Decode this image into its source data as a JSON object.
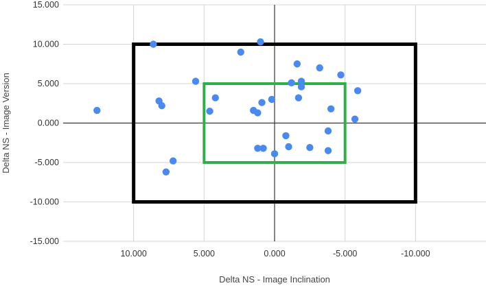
{
  "chart_data": {
    "type": "scatter",
    "title": "",
    "xlabel": "Delta NS - Image Inclination",
    "ylabel": "Delta NS - Image Version",
    "xlim": [
      -15,
      15
    ],
    "ylim": [
      -15,
      15
    ],
    "x_reversed": true,
    "x_ticks": [
      10,
      5,
      0,
      -5,
      -10
    ],
    "x_tick_labels": [
      "10.000",
      "5.000",
      "0.000",
      "-5.000",
      "-10.000"
    ],
    "y_ticks": [
      15,
      10,
      5,
      0,
      -5,
      -10,
      -15
    ],
    "y_tick_labels": [
      "15.000",
      "10.000",
      "5.000",
      "0.000",
      "-5.000",
      "-10.000",
      "-15.000"
    ],
    "grid": true,
    "point_color": "#4a89f0",
    "points": [
      {
        "x": 12.6,
        "y": 1.6
      },
      {
        "x": 8.6,
        "y": 10.0
      },
      {
        "x": 8.2,
        "y": 2.8
      },
      {
        "x": 8.0,
        "y": 2.2
      },
      {
        "x": 7.2,
        "y": -4.8
      },
      {
        "x": 7.7,
        "y": -6.2
      },
      {
        "x": 5.6,
        "y": 5.3
      },
      {
        "x": 4.2,
        "y": 3.2
      },
      {
        "x": 4.6,
        "y": 1.5
      },
      {
        "x": 2.4,
        "y": 9.0
      },
      {
        "x": 1.0,
        "y": 10.3
      },
      {
        "x": 0.9,
        "y": 2.6
      },
      {
        "x": 1.5,
        "y": 1.6
      },
      {
        "x": 1.2,
        "y": 1.3
      },
      {
        "x": 0.2,
        "y": 3.0
      },
      {
        "x": 1.2,
        "y": -3.2
      },
      {
        "x": 0.8,
        "y": -3.2
      },
      {
        "x": 0.0,
        "y": -3.9
      },
      {
        "x": -0.8,
        "y": -1.6
      },
      {
        "x": -1.0,
        "y": -3.0
      },
      {
        "x": -1.6,
        "y": 7.5
      },
      {
        "x": -1.2,
        "y": 5.1
      },
      {
        "x": -1.9,
        "y": 5.3
      },
      {
        "x": -1.9,
        "y": 4.6
      },
      {
        "x": -1.7,
        "y": 3.2
      },
      {
        "x": -2.5,
        "y": -3.1
      },
      {
        "x": -3.2,
        "y": 7.0
      },
      {
        "x": -4.7,
        "y": 6.1
      },
      {
        "x": -4.0,
        "y": 1.8
      },
      {
        "x": -3.8,
        "y": -1.0
      },
      {
        "x": -3.8,
        "y": -3.5
      },
      {
        "x": -5.7,
        "y": 0.5
      },
      {
        "x": -5.9,
        "y": 4.1
      }
    ],
    "rectangles": [
      {
        "name": "outer",
        "x_range": [
          10,
          -10
        ],
        "y_range": [
          -10,
          10
        ],
        "color": "#000000"
      },
      {
        "name": "inner",
        "x_range": [
          5,
          -5
        ],
        "y_range": [
          -5,
          5
        ],
        "color": "#2fae4a"
      }
    ]
  }
}
